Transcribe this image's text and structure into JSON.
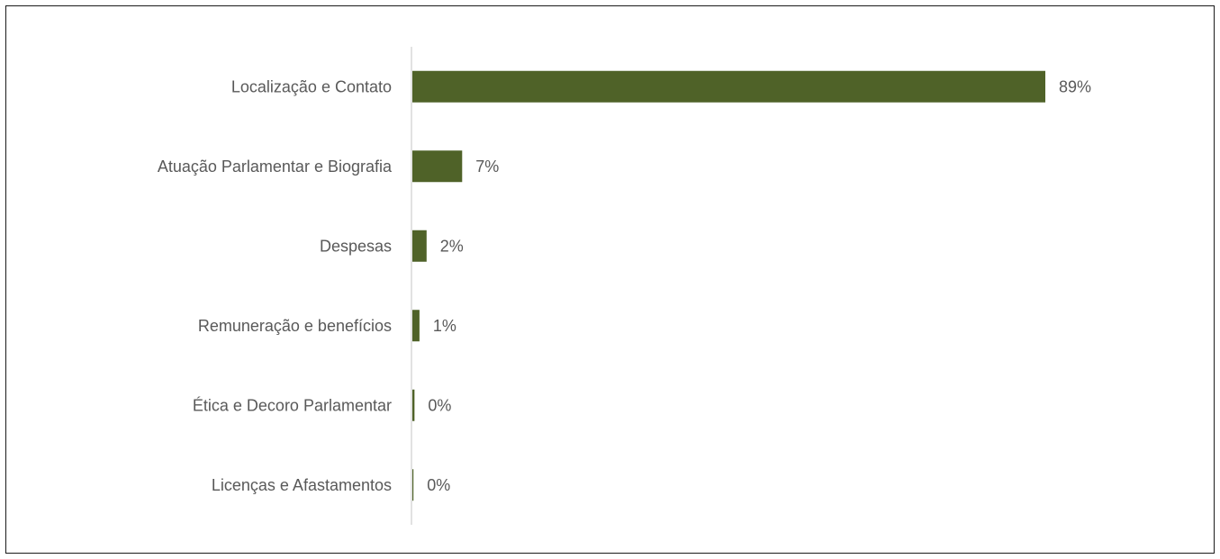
{
  "chart_data": {
    "type": "bar",
    "orientation": "horizontal",
    "categories": [
      "Localização e Contato",
      "Atuação Parlamentar e Biografia",
      "Despesas",
      "Remuneração e benefícios",
      "Ética e Decoro Parlamentar",
      "Licenças e Afastamentos"
    ],
    "values": [
      89,
      7,
      2,
      1,
      0.3,
      0.1
    ],
    "value_labels": [
      "89%",
      "7%",
      "2%",
      "1%",
      "0%",
      "0%"
    ],
    "title": "",
    "xlabel": "",
    "ylabel": "",
    "xlim": [
      0,
      100
    ],
    "grid": false,
    "legend": "none",
    "bar_color": "#4f6228",
    "axis_color": "#d9d9d9",
    "text_color": "#595959"
  }
}
